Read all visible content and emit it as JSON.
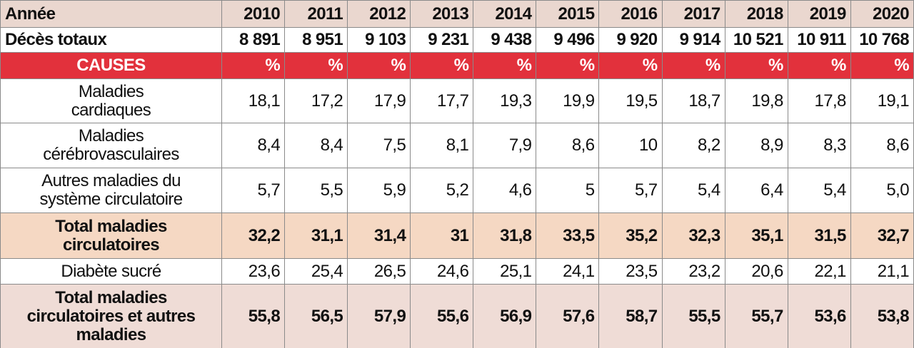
{
  "table": {
    "header": {
      "label": "Année",
      "years": [
        "2010",
        "2011",
        "2012",
        "2013",
        "2014",
        "2015",
        "2016",
        "2017",
        "2018",
        "2019",
        "2020"
      ],
      "background": "#ead7cf"
    },
    "total_deaths": {
      "label": "Décès totaux",
      "values": [
        "8 891",
        "8 951",
        "9 103",
        "9 231",
        "9 438",
        "9 496",
        "9 920",
        "9 914",
        "10 521",
        "10 911",
        "10 768"
      ]
    },
    "causes_header": {
      "label": "CAUSES",
      "units": [
        "%",
        "%",
        "%",
        "%",
        "%",
        "%",
        "%",
        "%",
        "%",
        "%",
        "%"
      ],
      "background": "#e2313c"
    },
    "rows": [
      {
        "label": "Maladies\ncardiaques",
        "values": [
          "18,1",
          "17,2",
          "17,9",
          "17,7",
          "19,3",
          "19,9",
          "19,5",
          "18,7",
          "19,8",
          "17,8",
          "19,1"
        ]
      },
      {
        "label": "Maladies\ncérébrovasculaires",
        "values": [
          "8,4",
          "8,4",
          "7,5",
          "8,1",
          "7,9",
          "8,6",
          "10",
          "8,2",
          "8,9",
          "8,3",
          "8,6"
        ]
      },
      {
        "label": "Autres maladies du\nsystème circulatoire",
        "values": [
          "5,7",
          "5,5",
          "5,9",
          "5,2",
          "4,6",
          "5",
          "5,7",
          "5,4",
          "6,4",
          "5,4",
          "5,0"
        ]
      },
      {
        "label": "Total maladies\ncirculatoires",
        "values": [
          "32,2",
          "31,1",
          "31,4",
          "31",
          "31,8",
          "33,5",
          "35,2",
          "32,3",
          "35,1",
          "31,5",
          "32,7"
        ],
        "bold": true,
        "background": "#f5d8c3"
      },
      {
        "label": "Diabète sucré",
        "values": [
          "23,6",
          "25,4",
          "26,5",
          "24,6",
          "25,1",
          "24,1",
          "23,5",
          "23,2",
          "20,6",
          "22,1",
          "21,1"
        ]
      },
      {
        "label": "Total maladies\ncirculatoires et autres\nmaladies",
        "values": [
          "55,8",
          "56,5",
          "57,9",
          "55,6",
          "56,9",
          "57,6",
          "58,7",
          "55,5",
          "55,7",
          "53,6",
          "53,8"
        ],
        "bold": true,
        "background": "#efdcd6"
      }
    ]
  }
}
